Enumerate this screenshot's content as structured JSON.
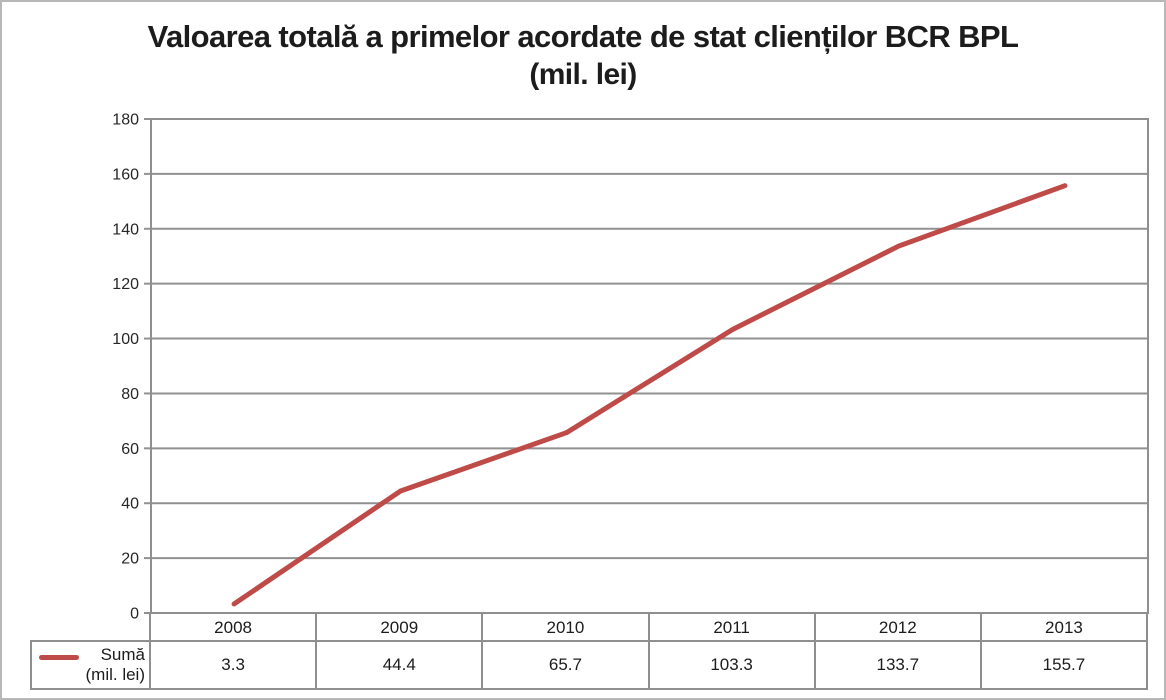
{
  "title": {
    "line1": "Valoarea totală a primelor acordate de stat clienților BCR BPL",
    "line2": "(mil. lei)"
  },
  "legend": {
    "label_line1": "Sumă",
    "label_line2": "(mil. lei)",
    "swatch_color": "#be4b48"
  },
  "chart_data": {
    "type": "line",
    "title": "Valoarea totală a primelor acordate de stat clienților BCR BPL (mil. lei)",
    "categories": [
      "2008",
      "2009",
      "2010",
      "2011",
      "2012",
      "2013"
    ],
    "series": [
      {
        "name": "Sumă (mil. lei)",
        "values": [
          3.3,
          44.4,
          65.7,
          103.3,
          133.7,
          155.7
        ],
        "color": "#be4b48"
      }
    ],
    "xlabel": "",
    "ylabel": "",
    "ylim": [
      0,
      180
    ],
    "ytick_step": 20,
    "grid": true,
    "legend_position": "bottom-left-table"
  },
  "colors": {
    "grid_line": "#919191",
    "plot_border": "#8f8f8f",
    "axis_text": "#262626",
    "series_line": "#be4b48"
  }
}
